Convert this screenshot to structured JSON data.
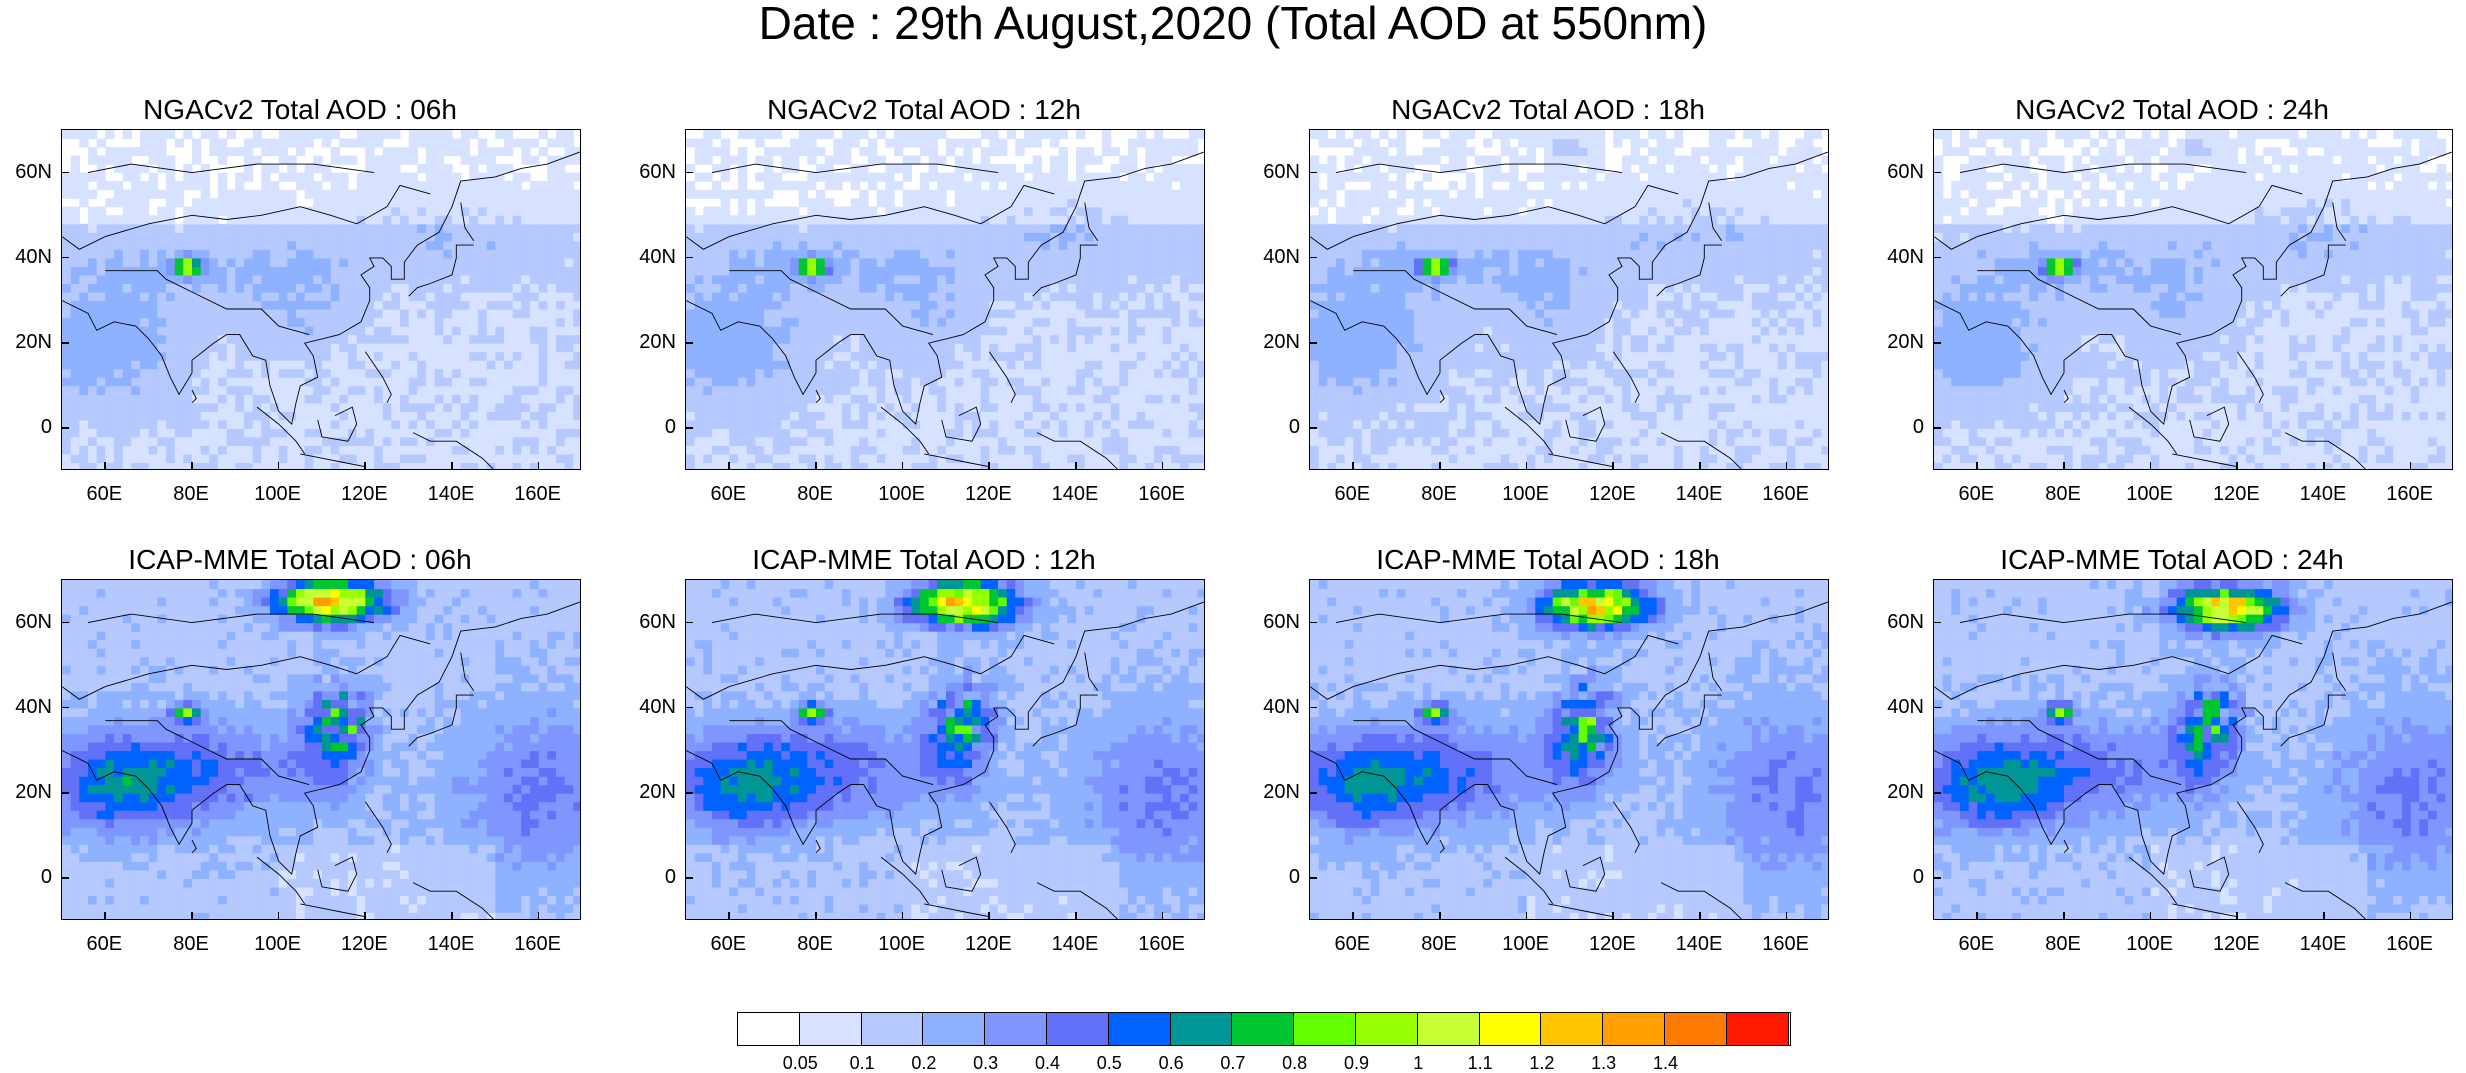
{
  "title": "Date : 29th August,2020 (Total AOD at 550nm)",
  "axes": {
    "lon_labels": [
      "60E",
      "80E",
      "100E",
      "120E",
      "140E",
      "160E"
    ],
    "lat_labels": [
      "60N",
      "40N",
      "20N",
      "0"
    ],
    "lon_values": [
      60,
      80,
      100,
      120,
      140,
      160
    ],
    "lat_values": [
      60,
      40,
      20,
      0
    ],
    "lon_range": [
      50,
      170
    ],
    "lat_range": [
      -10,
      70
    ]
  },
  "panels": [
    {
      "title": "NGACv2 Total AOD : 06h",
      "model": "NGACv2",
      "hour": "06h"
    },
    {
      "title": "NGACv2 Total AOD : 12h",
      "model": "NGACv2",
      "hour": "12h"
    },
    {
      "title": "NGACv2 Total AOD : 18h",
      "model": "NGACv2",
      "hour": "18h"
    },
    {
      "title": "NGACv2 Total AOD : 24h",
      "model": "NGACv2",
      "hour": "24h"
    },
    {
      "title": "ICAP-MME Total AOD : 06h",
      "model": "ICAP-MME",
      "hour": "06h"
    },
    {
      "title": "ICAP-MME Total AOD : 12h",
      "model": "ICAP-MME",
      "hour": "12h"
    },
    {
      "title": "ICAP-MME Total AOD : 18h",
      "model": "ICAP-MME",
      "hour": "18h"
    },
    {
      "title": "ICAP-MME Total AOD : 24h",
      "model": "ICAP-MME",
      "hour": "24h"
    }
  ],
  "colorbar": {
    "labels": [
      "0.05",
      "0.1",
      "0.2",
      "0.3",
      "0.4",
      "0.5",
      "0.6",
      "0.7",
      "0.8",
      "0.9",
      "1",
      "1.1",
      "1.2",
      "1.3",
      "1.4"
    ],
    "colors": [
      "#ffffff",
      "#d6e2ff",
      "#b5c9ff",
      "#8eb2ff",
      "#7f96ff",
      "#6370f8",
      "#0063ff",
      "#009696",
      "#00c633",
      "#63ff00",
      "#96ff00",
      "#c6ff33",
      "#ffff00",
      "#ffc600",
      "#ffa000",
      "#ff7c00",
      "#ff1900"
    ]
  }
}
